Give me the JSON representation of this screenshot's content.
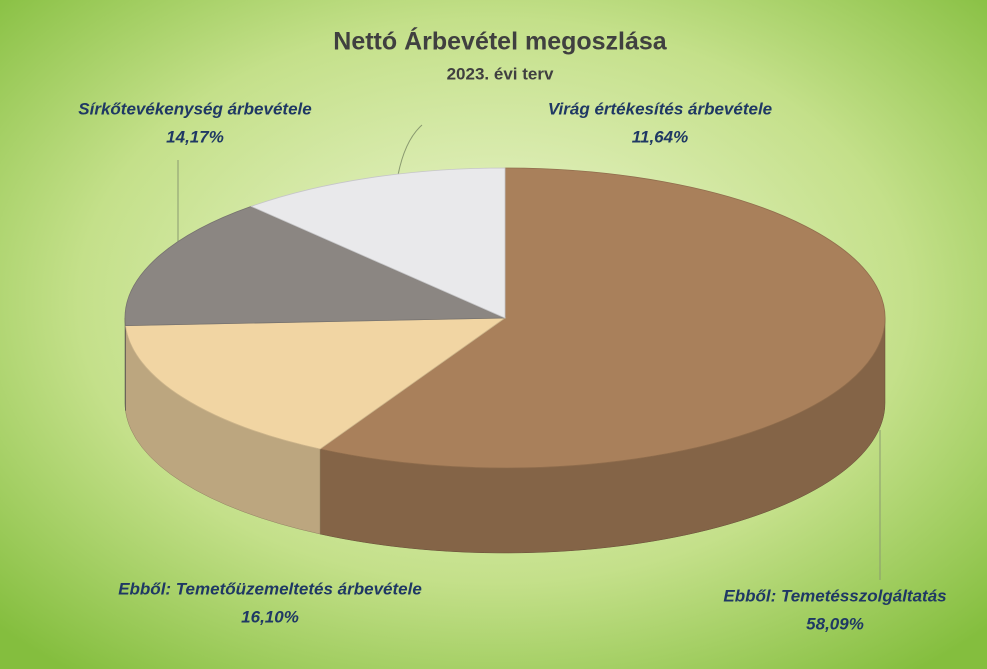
{
  "chart_data": {
    "type": "pie",
    "title": "Nettó Árbevétel megoszlása",
    "subtitle": "2023. évi terv",
    "categories": [
      "Ebből: Temetésszolgáltatás",
      "Ebből: Temetőüzemeltetés árbevétele",
      "Sírkőtevékenység árbevétele",
      "Virág értékesítés árbevétele"
    ],
    "values": [
      58.09,
      16.1,
      14.17,
      11.64
    ],
    "value_labels": [
      "58,09%",
      "16,10%",
      "14,17%",
      "11,64%"
    ],
    "colors": [
      "#a9805b",
      "#f1d5a3",
      "#8b8682",
      "#e9e9eb"
    ]
  }
}
